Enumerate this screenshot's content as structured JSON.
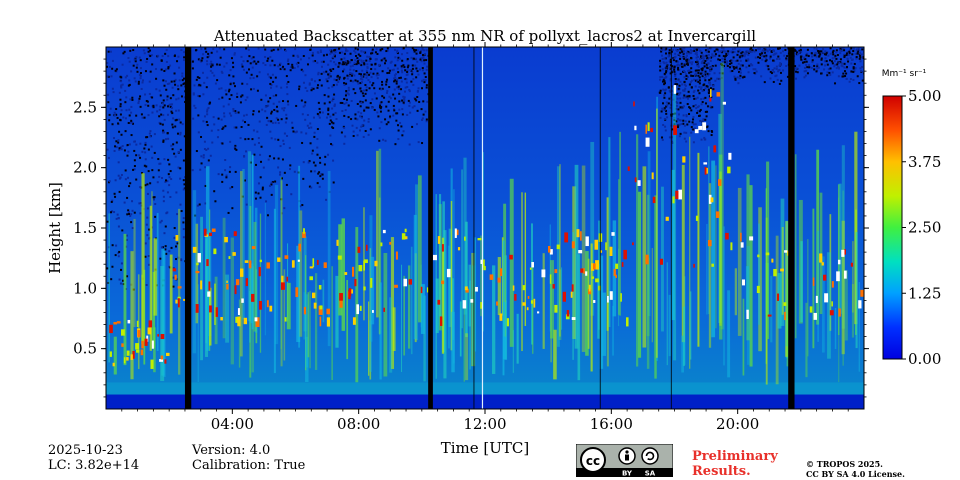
{
  "chart_data": {
    "type": "heatmap",
    "title": "Attenuated Backscatter at 355 nm NR of pollyxt_lacros2 at Invercargill",
    "xlabel": "Time [UTC]",
    "ylabel": "Height [km]",
    "x_ticks": [
      "04:00",
      "08:00",
      "12:00",
      "16:00",
      "20:00"
    ],
    "x_tick_hours": [
      4,
      8,
      12,
      16,
      20
    ],
    "xlim_hours": [
      0,
      24
    ],
    "y_ticks": [
      "0.5",
      "1.0",
      "1.5",
      "2.0",
      "2.5"
    ],
    "y_tick_values": [
      0.5,
      1.0,
      1.5,
      2.0,
      2.5
    ],
    "ylim_km": [
      0,
      3.0
    ],
    "colorbar": {
      "unit_label": "Mm⁻¹ sr⁻¹",
      "ticks": [
        "0.00",
        "1.25",
        "2.50",
        "3.75",
        "5.00"
      ],
      "tick_values": [
        0,
        1.25,
        2.5,
        3.75,
        5.0
      ],
      "range": [
        0,
        5.0
      ],
      "colormap": "jet",
      "placement": "right"
    },
    "missing_data_hours": [
      {
        "start": 2.5,
        "end": 2.7
      },
      {
        "start": 10.2,
        "end": 10.35
      },
      {
        "start": 21.6,
        "end": 21.8
      }
    ],
    "features": {
      "near_surface_layer_km": [
        0.0,
        0.1
      ],
      "noise_region_note": "",
      "cloud_layers_km": [
        0.8,
        1.5
      ]
    }
  },
  "footer": {
    "date": "2025-10-23",
    "lc": "LC: 3.82e+14",
    "version": "Version: 4.0",
    "calibration": "Calibration: True",
    "preliminary_line1": "Preliminary",
    "preliminary_line2": "Results.",
    "copyright_line1": "© TROPOS 2025.",
    "copyright_line2": "CC BY SA 4.0 License.",
    "license_badge": {
      "by": "BY",
      "sa": "SA"
    }
  },
  "colors": {
    "background_field": "#0a4fd6",
    "noise_dark": "#000010",
    "prelim_red": "#e8302a"
  }
}
